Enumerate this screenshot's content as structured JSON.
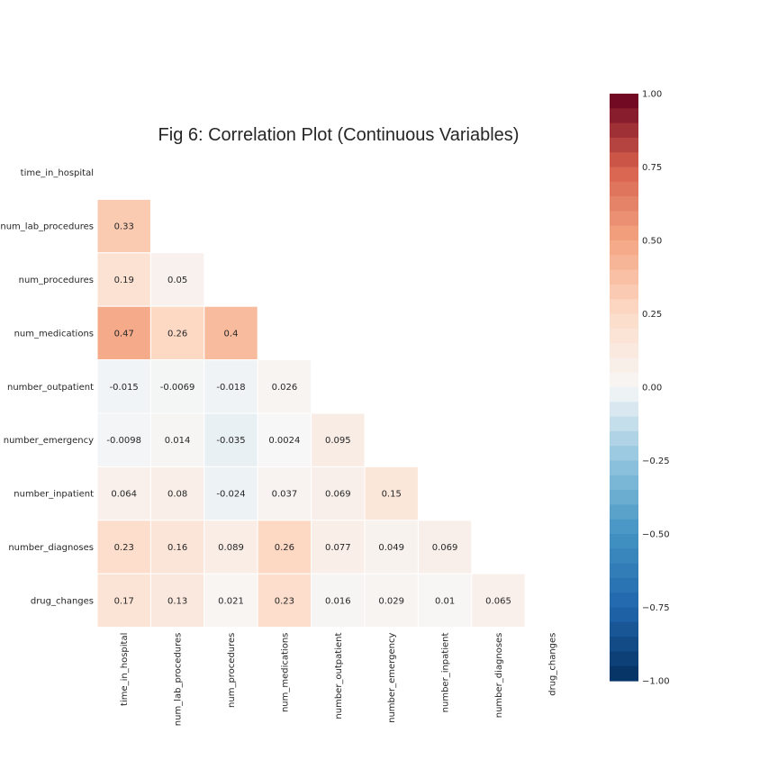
{
  "chart_data": {
    "type": "heatmap",
    "title": "Fig 6: Correlation Plot (Continuous Variables)",
    "xlabel": "",
    "ylabel": "",
    "mask": "upper-triangle-including-diagonal",
    "row_labels": [
      "time_in_hospital",
      "num_lab_procedures",
      "num_procedures",
      "num_medications",
      "number_outpatient",
      "number_emergency",
      "number_inpatient",
      "number_diagnoses",
      "drug_changes"
    ],
    "col_labels": [
      "time_in_hospital",
      "num_lab_procedures",
      "num_procedures",
      "num_medications",
      "number_outpatient",
      "number_emergency",
      "number_inpatient",
      "number_diagnoses",
      "drug_changes"
    ],
    "values": [
      [],
      [
        0.33
      ],
      [
        0.19,
        0.05
      ],
      [
        0.47,
        0.26,
        0.4
      ],
      [
        -0.015,
        -0.0069,
        -0.018,
        0.026
      ],
      [
        -0.0098,
        0.014,
        -0.035,
        0.0024,
        0.095
      ],
      [
        0.064,
        0.08,
        -0.024,
        0.037,
        0.069,
        0.15
      ],
      [
        0.23,
        0.16,
        0.089,
        0.26,
        0.077,
        0.049,
        0.069
      ],
      [
        0.17,
        0.13,
        0.021,
        0.23,
        0.016,
        0.029,
        0.01,
        0.065
      ]
    ],
    "value_labels": [
      [],
      [
        "0.33"
      ],
      [
        "0.19",
        "0.05"
      ],
      [
        "0.47",
        "0.26",
        "0.4"
      ],
      [
        "-0.015",
        "-0.0069",
        "-0.018",
        "0.026"
      ],
      [
        "-0.0098",
        "0.014",
        "-0.035",
        "0.0024",
        "0.095"
      ],
      [
        "0.064",
        "0.08",
        "-0.024",
        "0.037",
        "0.069",
        "0.15"
      ],
      [
        "0.23",
        "0.16",
        "0.089",
        "0.26",
        "0.077",
        "0.049",
        "0.069"
      ],
      [
        "0.17",
        "0.13",
        "0.021",
        "0.23",
        "0.016",
        "0.029",
        "0.01",
        "0.065"
      ]
    ],
    "colorscale": "RdBu_r",
    "vmin": -1,
    "vmax": 1,
    "colorbar": {
      "ticks": [
        1.0,
        0.75,
        0.5,
        0.25,
        0.0,
        -0.25,
        -0.5,
        -0.75,
        -1.0
      ],
      "tick_labels": [
        "1.00",
        "0.75",
        "0.50",
        "0.25",
        "0.00",
        "−0.25",
        "−0.50",
        "−0.75",
        "−1.00"
      ]
    },
    "grid": false,
    "cell_border_color": "#ffffff"
  }
}
